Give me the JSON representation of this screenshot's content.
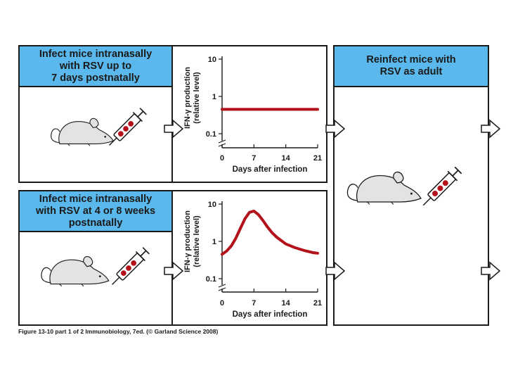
{
  "panels": {
    "top_left_header": [
      "Infect mice intranasally",
      "with RSV up to",
      "7 days postnatally"
    ],
    "bottom_left_header": [
      "Infect mice intranasally",
      "with RSV at 4 or 8 weeks",
      "postnatally"
    ],
    "right_header": [
      "Reinfect mice with",
      "RSV as adult"
    ]
  },
  "caption": "Figure 13-10 part 1 of 2 Immunobiology, 7ed. (© Garland Science 2008)",
  "colors": {
    "header_blue": "#5bb8ec",
    "curve_red": "#b3121a",
    "mouse_gray": "#e3e3e3"
  },
  "icons": [
    "mouse-icon",
    "syringe-icon",
    "arrow-right-icon"
  ],
  "chart_data": [
    {
      "type": "line",
      "title": "",
      "xlabel": "Days after infection",
      "ylabel": [
        "IFN-γ production",
        "(relative level)"
      ],
      "x_ticks": [
        "0",
        "7",
        "14",
        "21"
      ],
      "y_ticks": [
        "0.1",
        "1",
        "10"
      ],
      "y_scale": "log",
      "xlim": [
        0,
        21
      ],
      "ylim": [
        0.1,
        10
      ],
      "series": [
        {
          "x": [
            0,
            3,
            7,
            10,
            14,
            17,
            21
          ],
          "y": [
            0.45,
            0.45,
            0.45,
            0.45,
            0.45,
            0.45,
            0.45
          ]
        }
      ]
    },
    {
      "type": "line",
      "title": "",
      "xlabel": "Days after infection",
      "ylabel": [
        "IFN-γ production",
        "(relative level)"
      ],
      "x_ticks": [
        "0",
        "7",
        "14",
        "21"
      ],
      "y_ticks": [
        "0.1",
        "1",
        "10"
      ],
      "y_scale": "log",
      "xlim": [
        0,
        21
      ],
      "ylim": [
        0.1,
        10
      ],
      "series": [
        {
          "x": [
            0,
            1,
            2,
            3,
            4,
            5,
            6,
            7,
            8,
            9,
            10,
            11,
            12,
            13,
            14,
            16,
            18,
            20,
            21
          ],
          "y": [
            0.45,
            0.55,
            0.75,
            1.2,
            2.2,
            4.0,
            6.0,
            6.5,
            5.2,
            3.6,
            2.4,
            1.7,
            1.3,
            1.05,
            0.85,
            0.68,
            0.57,
            0.5,
            0.48
          ]
        }
      ]
    }
  ]
}
